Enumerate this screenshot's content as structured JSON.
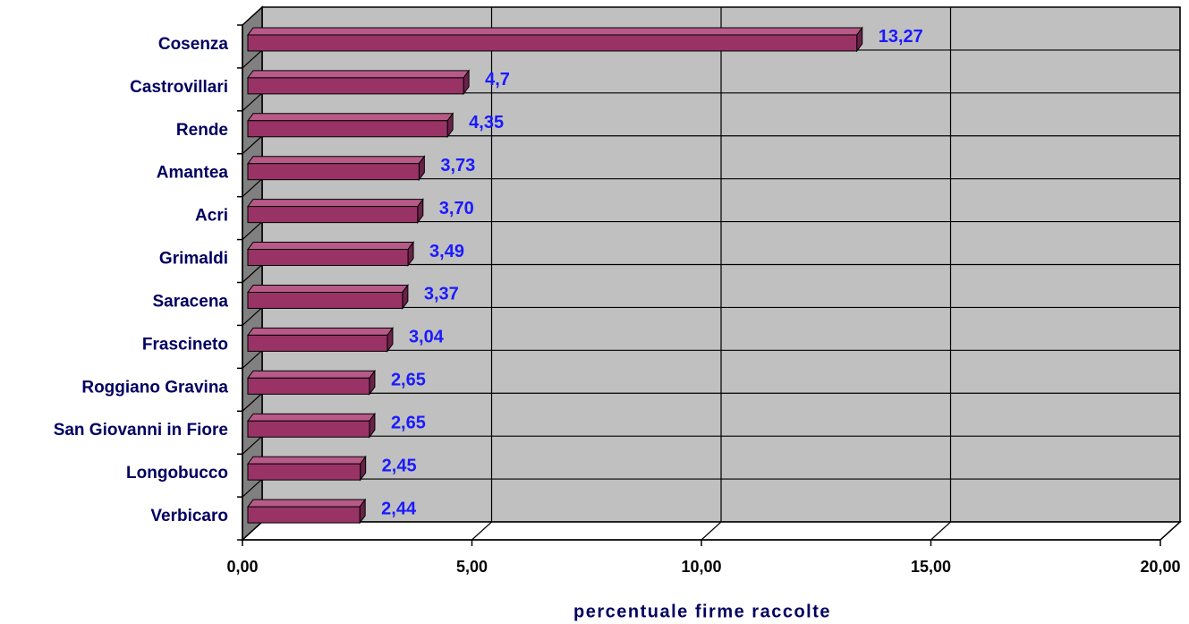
{
  "chart_data": {
    "type": "bar",
    "orientation": "horizontal",
    "x_label": "percentuale firme raccolte",
    "categories": [
      "Cosenza",
      "Castrovillari",
      "Rende",
      "Amantea",
      "Acri",
      "Grimaldi",
      "Saracena",
      "Frascineto",
      "Roggiano Gravina",
      "San Giovanni in Fiore",
      "Longobucco",
      "Verbicaro"
    ],
    "values": [
      13.27,
      4.7,
      4.35,
      3.73,
      3.7,
      3.49,
      3.37,
      3.04,
      2.65,
      2.65,
      2.45,
      2.44
    ],
    "value_labels": [
      "13,27",
      "4,7",
      "4,35",
      "3,73",
      "3,70",
      "3,49",
      "3,37",
      "3,04",
      "2,65",
      "2,65",
      "2,45",
      "2,44"
    ],
    "color": "#993366",
    "xlim": [
      0,
      20
    ],
    "xticks": [
      {
        "value": 0,
        "label": "0,00"
      },
      {
        "value": 5,
        "label": "5,00"
      },
      {
        "value": 10,
        "label": "10,00"
      },
      {
        "value": 15,
        "label": "15,00"
      },
      {
        "value": 20,
        "label": "20,00"
      }
    ],
    "grid": true
  }
}
